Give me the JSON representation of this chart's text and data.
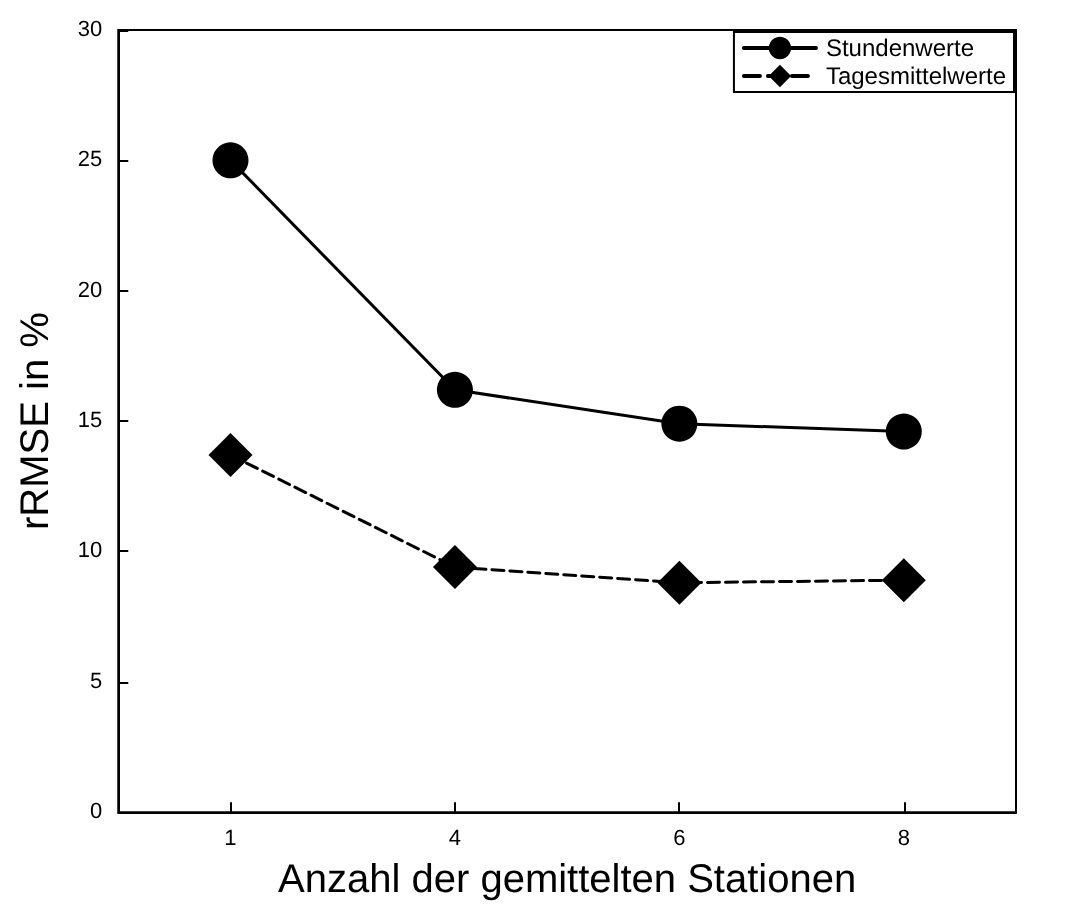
{
  "chart_data": {
    "type": "line",
    "xlabel": "Anzahl der gemittelten Stationen",
    "ylabel": "rRMSE in %",
    "categories": [
      "1",
      "4",
      "6",
      "8"
    ],
    "series": [
      {
        "name": "Stundenwerte",
        "color": "#000000",
        "values": [
          25,
          16.2,
          14.9,
          14.6
        ],
        "marker": "circle",
        "line_style": "solid"
      },
      {
        "name": "Tagesmittelwerte",
        "color": "#000000",
        "values": [
          13.7,
          9.4,
          8.8,
          8.9
        ],
        "marker": "diamond",
        "line_style": "dashed"
      }
    ],
    "ylim": [
      0,
      30
    ],
    "yticks": [
      0,
      5,
      10,
      15,
      20,
      25,
      30
    ],
    "grid": false,
    "legend": "top right"
  }
}
